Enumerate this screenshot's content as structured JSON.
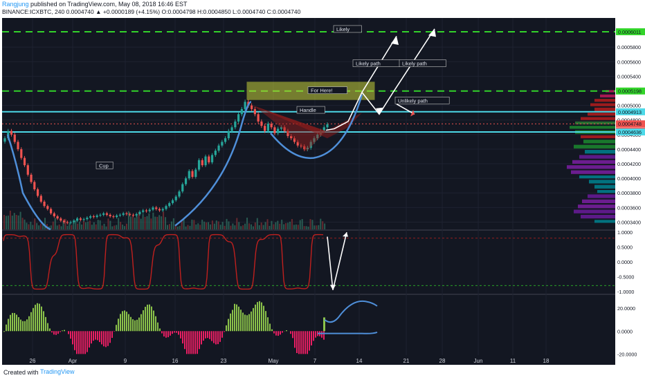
{
  "header": {
    "author": "Rangjung",
    "published_text": "published on TradingView.com, May 08, 2018 16:46 EST",
    "symbol_line": "BINANCE:ICXBTC, 240 0.0004740 ▲ +0.0000189 (+4.15%) O:0.0004798 H:0.0004850 L:0.0004740 C:0.0004740"
  },
  "footer": {
    "created": "Created with",
    "brand": "TradingView"
  },
  "colors": {
    "background": "#131722",
    "bull": "#26a69a",
    "bear": "#ef5350",
    "green_line": "#33d42a",
    "cyan_line": "#4dd9e8",
    "cup_curve": "#4f8fd9",
    "oscillator": "#c0201e",
    "histogram_pos": "#8bc34a",
    "histogram_neg": "#e91e63"
  },
  "chart_data": [
    {
      "type": "candlestick",
      "ylim": [
        0.00033,
        0.00062
      ],
      "y_ticks": [
        "0.0003400",
        "0.0003600",
        "0.0003800",
        "0.0004000",
        "0.0004200",
        "0.0004400",
        "0.0004600",
        "0.0004800",
        "0.0005000",
        "0.0005200",
        "0.0005400",
        "0.0005600",
        "0.0005800"
      ],
      "x_ticks": [
        "26",
        "Apr",
        "9",
        "16",
        "23",
        "May",
        "7",
        "14",
        "21",
        "28",
        "Jun",
        "11",
        "18"
      ],
      "price_labels": [
        {
          "label": "0.0006011",
          "value": 0.0006011,
          "color": "#33d42a"
        },
        {
          "label": "0.0005198",
          "value": 0.0005198,
          "color": "#33d42a"
        },
        {
          "label": "0.0004913",
          "value": 0.0004913,
          "color": "#4dd9e8"
        },
        {
          "label": "0.0004748",
          "value": 0.0004748,
          "color": "#ef5350"
        },
        {
          "label": "02:13:20",
          "value": 0.000465,
          "color": "#ef5350"
        },
        {
          "label": "0.0004636",
          "value": 0.0004636,
          "color": "#4dd9e8"
        }
      ],
      "horizontal_levels": [
        {
          "value": 0.0006011,
          "style": "dashed",
          "color": "#33d42a"
        },
        {
          "value": 0.0005198,
          "style": "dashed",
          "color": "#33d42a"
        },
        {
          "value": 0.0004913,
          "style": "solid",
          "color": "#4dd9e8"
        },
        {
          "value": 0.0004636,
          "style": "solid",
          "color": "#4dd9e8"
        }
      ],
      "annotations": [
        "Likely",
        "Likely path",
        "Likely path",
        "For Here!",
        "Unlikely path",
        "Handle",
        "Cup"
      ],
      "close_series": [
        0.000455,
        0.000465,
        0.00046,
        0.00045,
        0.00044,
        0.000428,
        0.000418,
        0.000405,
        0.000395,
        0.000385,
        0.000376,
        0.000368,
        0.000362,
        0.000358,
        0.000352,
        0.000348,
        0.000345,
        0.000342,
        0.00034,
        0.000339,
        0.00034,
        0.000342,
        0.000345,
        0.000343,
        0.000344,
        0.000346,
        0.000348,
        0.000347,
        0.000349,
        0.00035,
        0.000352,
        0.00035,
        0.000348,
        0.000347,
        0.000349,
        0.00035,
        0.000352,
        0.000351,
        0.00035,
        0.000349,
        0.000351,
        0.000354,
        0.000356,
        0.000355,
        0.000357,
        0.00036,
        0.000358,
        0.000356,
        0.000358,
        0.000362,
        0.000366,
        0.00037,
        0.000375,
        0.000382,
        0.000392,
        0.0004,
        0.00041,
        0.000402,
        0.000412,
        0.000425,
        0.000418,
        0.00043,
        0.000422,
        0.000432,
        0.000438,
        0.000445,
        0.00045,
        0.000455,
        0.000465,
        0.00047,
        0.000478,
        0.000488,
        0.000495,
        0.000505,
        0.0005,
        0.000495,
        0.000488,
        0.000478,
        0.000472,
        0.000465,
        0.000475,
        0.00047,
        0.000462,
        0.000468,
        0.00047,
        0.000465,
        0.000458,
        0.000455,
        0.00045,
        0.000445,
        0.000444,
        0.00044,
        0.000442,
        0.00045,
        0.000455,
        0.00046,
        0.000465,
        0.00047,
        0.000474
      ]
    },
    {
      "type": "line",
      "name": "oscillator",
      "ylim": [
        -1.05,
        1.05
      ],
      "y_ticks": [
        "1.0000",
        "0.5000",
        "0.0000",
        "-0.5000",
        "-1.0000"
      ],
      "levels": [
        0.8,
        -0.8
      ]
    },
    {
      "type": "bar",
      "name": "histogram",
      "ylim": [
        -21,
        31
      ],
      "y_ticks": [
        "20.0000",
        "0.0000",
        "-20.0000"
      ]
    }
  ]
}
